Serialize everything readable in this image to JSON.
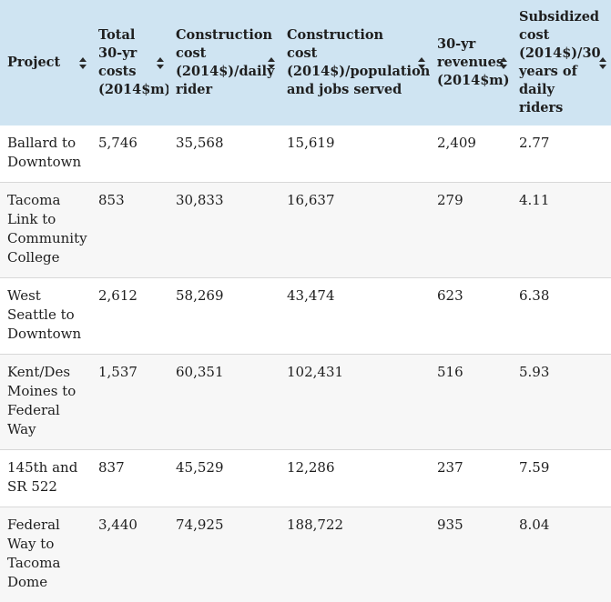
{
  "theme": {
    "header_bg": "#cfe4f2",
    "row_alt_bg": "#f7f7f7",
    "divider": "#d8d8d8",
    "text": "#1e1e1e"
  },
  "icons": {
    "sort": {
      "name": "sort-icon",
      "shape": "stacked up/down filled triangles ▲▼"
    }
  },
  "table": {
    "columns": [
      "Project",
      "Total 30-yr costs (2014$m)",
      "Construction cost (2014$)/daily rider",
      "Construction cost (2014$)/population and jobs served",
      "30-yr revenues (2014$m)",
      "Subsidized cost (2014$)/30 years of daily riders"
    ],
    "rows": [
      [
        "Ballard to Downtown",
        "5,746",
        "35,568",
        "15,619",
        "2,409",
        "2.77"
      ],
      [
        "Tacoma Link to Community College",
        "853",
        "30,833",
        "16,637",
        "279",
        "4.11"
      ],
      [
        "West Seattle to Downtown",
        "2,612",
        "58,269",
        "43,474",
        "623",
        "6.38"
      ],
      [
        "Kent/Des Moines to Federal Way",
        "1,537",
        "60,351",
        "102,431",
        "516",
        "5.93"
      ],
      [
        "145th and SR 522",
        "837",
        "45,529",
        "12,286",
        "237",
        "7.59"
      ],
      [
        "Federal Way to Tacoma Dome",
        "3,440",
        "74,925",
        "188,722",
        "935",
        "8.04"
      ]
    ]
  }
}
